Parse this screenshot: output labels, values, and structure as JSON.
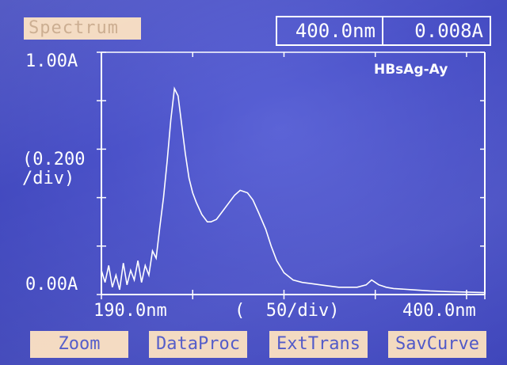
{
  "screen": {
    "mode_label": "Spectrum",
    "readout_wavelength": "400.0nm",
    "readout_absorbance": "0.008A"
  },
  "softkeys": [
    {
      "label": "Zoom"
    },
    {
      "label": "DataProc"
    },
    {
      "label": "ExtTrans"
    },
    {
      "label": "SavCurve"
    }
  ],
  "colors": {
    "screen_bg": "#4a51c8",
    "trace": "#ffffff",
    "softkey_bg": "#f3d9bf",
    "softkey_text": "#4d56c8"
  },
  "chart_data": {
    "type": "line",
    "title": "HBsAg-Ay",
    "y_top_label": "1.00A",
    "y_bottom_label": "0.00A",
    "y_scale_label_1": "(0.200",
    "y_scale_label_2": "/div)",
    "x_left_label": "190.0nm",
    "x_scale_label": "(  50/div)",
    "x_right_label": "400.0nm",
    "xlim": [
      190,
      400
    ],
    "ylim": [
      0,
      1.0
    ],
    "grid": false,
    "series": [
      {
        "x": [
          190,
          192,
          194,
          196,
          198,
          200,
          202,
          204,
          206,
          208,
          210,
          212,
          214,
          216,
          218,
          220,
          222,
          224,
          226,
          228,
          230,
          232,
          234,
          236,
          238,
          240,
          242,
          245,
          248,
          250,
          253,
          256,
          260,
          263,
          266,
          270,
          273,
          276,
          280,
          283,
          286,
          290,
          295,
          300,
          305,
          310,
          315,
          320,
          325,
          330,
          335,
          338,
          340,
          342,
          344,
          346,
          350,
          360,
          370,
          380,
          390,
          400
        ],
        "y": [
          0.1,
          0.05,
          0.12,
          0.03,
          0.08,
          0.02,
          0.13,
          0.04,
          0.1,
          0.06,
          0.14,
          0.05,
          0.12,
          0.08,
          0.18,
          0.15,
          0.28,
          0.4,
          0.55,
          0.72,
          0.85,
          0.82,
          0.7,
          0.58,
          0.48,
          0.42,
          0.38,
          0.33,
          0.3,
          0.3,
          0.31,
          0.34,
          0.38,
          0.41,
          0.43,
          0.42,
          0.39,
          0.34,
          0.27,
          0.2,
          0.14,
          0.09,
          0.06,
          0.05,
          0.045,
          0.04,
          0.035,
          0.03,
          0.03,
          0.03,
          0.04,
          0.06,
          0.05,
          0.04,
          0.035,
          0.03,
          0.025,
          0.02,
          0.015,
          0.012,
          0.01,
          0.008
        ]
      }
    ]
  }
}
